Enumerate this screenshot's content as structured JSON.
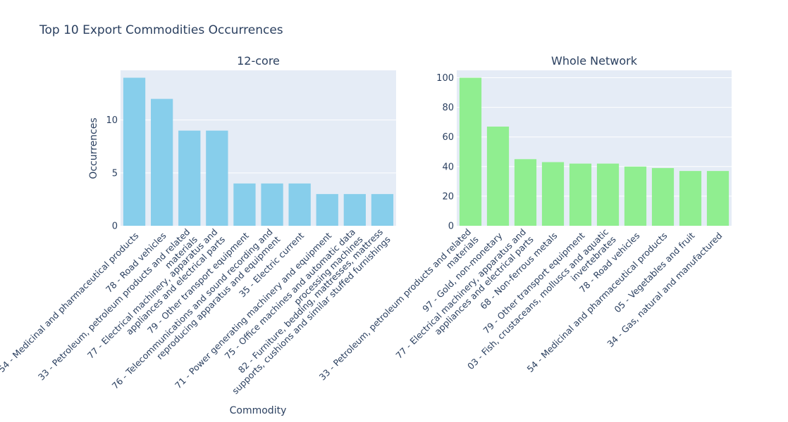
{
  "title": "Top 10 Export Commodities Occurrences",
  "xlabel": "Commodity",
  "ylabel": "Occurrences",
  "colors": {
    "plot_bg": "#e5ecf6",
    "grid": "#ffffff",
    "text": "#2a3f5f"
  },
  "chart_data": [
    {
      "type": "bar",
      "title": "12-core",
      "color": "#87ceeb",
      "ylim": [
        0,
        14.7
      ],
      "yticks": [
        0,
        5,
        10
      ],
      "categories": [
        [
          "54 - Medicinal and pharmaceutical products"
        ],
        [
          "78 - Road vehicles"
        ],
        [
          "33 - Petroleum, petroleum products and related",
          "materials"
        ],
        [
          "77 - Electrical machinery, apparatus and",
          "appliances and electrical parts"
        ],
        [
          "79 - Other transport equipment"
        ],
        [
          "76 - Telecommunications and sound recording and",
          "reproducing apparatus and equipment"
        ],
        [
          "35 - Electric current"
        ],
        [
          "71 - Power generating machinery and equipment"
        ],
        [
          "75 - Office machines and automatic data",
          "processing machines"
        ],
        [
          "82 - Furniture, bedding, mattresses, mattress",
          "supports, cushions and similar stuffed furnishings"
        ]
      ],
      "values": [
        14,
        12,
        9,
        9,
        4,
        4,
        4,
        3,
        3,
        3
      ]
    },
    {
      "type": "bar",
      "title": "Whole Network",
      "color": "#90ee90",
      "ylim": [
        0,
        105
      ],
      "yticks": [
        0,
        20,
        40,
        60,
        80,
        100
      ],
      "categories": [
        [
          "33 - Petroleum, petroleum products and related",
          "materials"
        ],
        [
          "97 - Gold, non-monetary"
        ],
        [
          "77 - Electrical machinery, apparatus and",
          "appliances and electrical parts"
        ],
        [
          "68 - Non-ferrous metals"
        ],
        [
          "79 - Other transport equipment"
        ],
        [
          "03 - Fish, crustaceans, molluscs and aquatic",
          "invertebrates"
        ],
        [
          "78 - Road vehicles"
        ],
        [
          "54 - Medicinal and pharmaceutical products"
        ],
        [
          "05 - Vegetables and fruit"
        ],
        [
          "34 - Gas, natural and manufactured"
        ]
      ],
      "values": [
        100,
        67,
        45,
        43,
        42,
        42,
        40,
        39,
        37,
        37
      ]
    }
  ]
}
